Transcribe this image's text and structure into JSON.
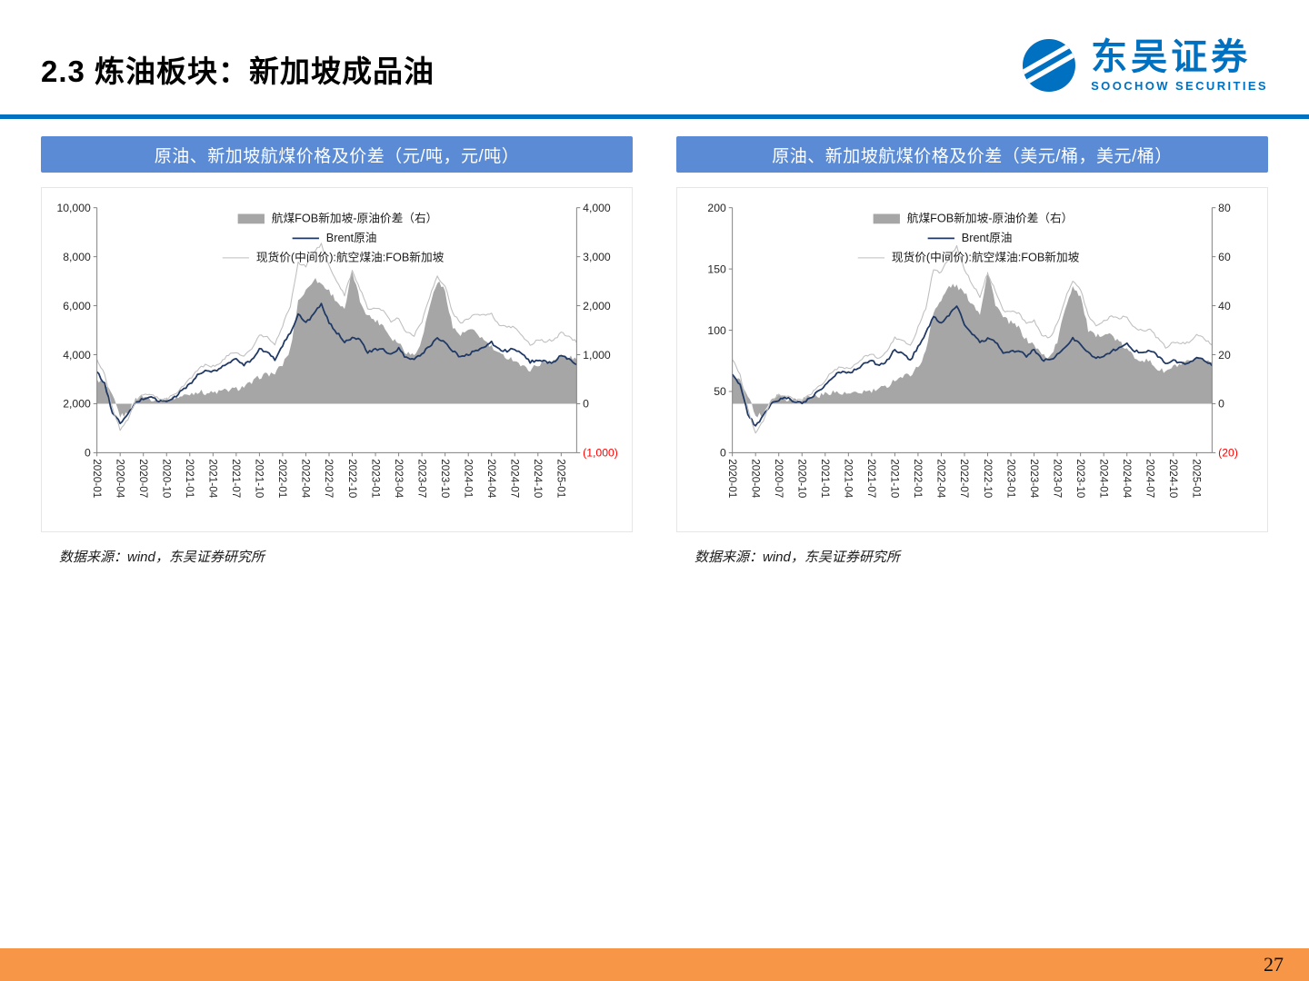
{
  "slide": {
    "title": "2.3 炼油板块：新加坡成品油",
    "page_number": "27"
  },
  "logo": {
    "name": "东吴证券",
    "subtitle": "SOOCHOW SECURITIES"
  },
  "colors": {
    "accent_blue": "#0070C0",
    "panel_header_blue": "#5B8BD5",
    "footer_orange": "#F79646",
    "negative_label_red": "#FF0000",
    "area_gray": "#A6A6A6",
    "brent_navy": "#1F3864",
    "spot_gray": "#BFBFBF",
    "axis_gray": "#808080"
  },
  "panels": [
    {
      "header": "原油、新加坡航煤价格及价差（元/吨，元/吨）",
      "source": "数据来源：wind，东吴证券研究所"
    },
    {
      "header": "原油、新加坡航煤价格及价差（美元/桶，美元/桶）",
      "source": "数据来源：wind，东吴证券研究所"
    }
  ],
  "chart_data": [
    {
      "type": "combo_line_area",
      "title": "原油、新加坡航煤价格及价差（元/吨，元/吨）",
      "grid": false,
      "legend_position": "top-center",
      "x": [
        "2020-01",
        "2020-02",
        "2020-03",
        "2020-04",
        "2020-05",
        "2020-06",
        "2020-07",
        "2020-08",
        "2020-09",
        "2020-10",
        "2020-11",
        "2020-12",
        "2021-01",
        "2021-02",
        "2021-03",
        "2021-04",
        "2021-05",
        "2021-06",
        "2021-07",
        "2021-08",
        "2021-09",
        "2021-10",
        "2021-11",
        "2021-12",
        "2022-01",
        "2022-02",
        "2022-03",
        "2022-04",
        "2022-05",
        "2022-06",
        "2022-07",
        "2022-08",
        "2022-09",
        "2022-10",
        "2022-11",
        "2022-12",
        "2023-01",
        "2023-02",
        "2023-03",
        "2023-04",
        "2023-05",
        "2023-06",
        "2023-07",
        "2023-08",
        "2023-09",
        "2023-10",
        "2023-11",
        "2023-12",
        "2024-01",
        "2024-02",
        "2024-03",
        "2024-04",
        "2024-05",
        "2024-06",
        "2024-07",
        "2024-08",
        "2024-09",
        "2024-10",
        "2024-11",
        "2024-12",
        "2025-01",
        "2025-02",
        "2025-03"
      ],
      "x_tick_labels": [
        "2020-01",
        "2020-04",
        "2020-07",
        "2020-10",
        "2021-01",
        "2021-04",
        "2021-07",
        "2021-10",
        "2022-01",
        "2022-04",
        "2022-07",
        "2022-10",
        "2023-01",
        "2023-04",
        "2023-07",
        "2023-10",
        "2024-01",
        "2024-04",
        "2024-07",
        "2024-10",
        "2025-01"
      ],
      "left_axis": {
        "min": 0,
        "max": 10000,
        "tick_labels": [
          "10,000",
          "8,000",
          "6,000",
          "4,000",
          "2,000",
          "0"
        ]
      },
      "right_axis": {
        "min": -1000,
        "max": 4000,
        "tick_labels": [
          "4,000",
          "3,000",
          "2,000",
          "1,000",
          "0",
          "(1,000)"
        ]
      },
      "series": [
        {
          "name": "航煤FOB新加坡-原油价差（右）",
          "type": "area",
          "axis": "right",
          "color": "#A6A6A6",
          "values": [
            500,
            400,
            150,
            -250,
            -200,
            100,
            150,
            100,
            80,
            80,
            120,
            150,
            200,
            250,
            220,
            220,
            250,
            280,
            300,
            350,
            420,
            550,
            600,
            620,
            800,
            1100,
            2100,
            2300,
            2550,
            2450,
            2300,
            2100,
            1900,
            2700,
            2100,
            1800,
            1700,
            1600,
            1350,
            1250,
            1050,
            1000,
            1300,
            2000,
            2500,
            2300,
            1550,
            1400,
            1500,
            1450,
            1300,
            1150,
            1000,
            950,
            900,
            750,
            700,
            800,
            850,
            900,
            950,
            950,
            900
          ]
        },
        {
          "name": "Brent原油",
          "type": "line",
          "axis": "left",
          "color": "#1F3864",
          "width": 1.8,
          "values": [
            3300,
            2800,
            1650,
            1200,
            1550,
            2050,
            2200,
            2300,
            2100,
            2100,
            2250,
            2550,
            2800,
            3150,
            3350,
            3300,
            3450,
            3700,
            3800,
            3600,
            3800,
            4250,
            4100,
            3800,
            4400,
            4900,
            5650,
            5300,
            5650,
            6050,
            5300,
            4900,
            4550,
            4700,
            4600,
            4100,
            4200,
            4200,
            4000,
            4250,
            3850,
            3800,
            4050,
            4350,
            4700,
            4500,
            4150,
            3900,
            4000,
            4200,
            4300,
            4500,
            4200,
            4150,
            4250,
            4000,
            3700,
            3800,
            3700,
            3700,
            3950,
            3800,
            3600
          ]
        },
        {
          "name": "现货价(中间价):航空煤油:FOB新加坡",
          "type": "line",
          "axis": "left",
          "color": "#BFBFBF",
          "width": 1.1,
          "values": [
            3800,
            3200,
            1800,
            950,
            1350,
            2150,
            2350,
            2400,
            2180,
            2180,
            2370,
            2700,
            3000,
            3400,
            3570,
            3520,
            3700,
            3980,
            4100,
            3950,
            4220,
            4800,
            4700,
            4420,
            5200,
            6000,
            7750,
            7600,
            8200,
            8500,
            7600,
            7000,
            6450,
            7400,
            6700,
            5900,
            5900,
            5800,
            5350,
            5500,
            4900,
            4800,
            5350,
            6350,
            7200,
            6800,
            5700,
            5300,
            5500,
            5650,
            5600,
            5650,
            5200,
            5100,
            5150,
            4750,
            4400,
            4600,
            4550,
            4600,
            4900,
            4750,
            4500
          ]
        }
      ]
    },
    {
      "type": "combo_line_area",
      "title": "原油、新加坡航煤价格及价差（美元/桶，美元/桶）",
      "grid": false,
      "legend_position": "top-center",
      "x": [
        "2020-01",
        "2020-02",
        "2020-03",
        "2020-04",
        "2020-05",
        "2020-06",
        "2020-07",
        "2020-08",
        "2020-09",
        "2020-10",
        "2020-11",
        "2020-12",
        "2021-01",
        "2021-02",
        "2021-03",
        "2021-04",
        "2021-05",
        "2021-06",
        "2021-07",
        "2021-08",
        "2021-09",
        "2021-10",
        "2021-11",
        "2021-12",
        "2022-01",
        "2022-02",
        "2022-03",
        "2022-04",
        "2022-05",
        "2022-06",
        "2022-07",
        "2022-08",
        "2022-09",
        "2022-10",
        "2022-11",
        "2022-12",
        "2023-01",
        "2023-02",
        "2023-03",
        "2023-04",
        "2023-05",
        "2023-06",
        "2023-07",
        "2023-08",
        "2023-09",
        "2023-10",
        "2023-11",
        "2023-12",
        "2024-01",
        "2024-02",
        "2024-03",
        "2024-04",
        "2024-05",
        "2024-06",
        "2024-07",
        "2024-08",
        "2024-09",
        "2024-10",
        "2024-11",
        "2024-12",
        "2025-01",
        "2025-02",
        "2025-03"
      ],
      "x_tick_labels": [
        "2020-01",
        "2020-04",
        "2020-07",
        "2020-10",
        "2021-01",
        "2021-04",
        "2021-07",
        "2021-10",
        "2022-01",
        "2022-04",
        "2022-07",
        "2022-10",
        "2023-01",
        "2023-04",
        "2023-07",
        "2023-10",
        "2024-01",
        "2024-04",
        "2024-07",
        "2024-10",
        "2025-01"
      ],
      "left_axis": {
        "min": 0,
        "max": 200,
        "tick_labels": [
          "200",
          "150",
          "100",
          "50",
          "0"
        ]
      },
      "right_axis": {
        "min": -20,
        "max": 80,
        "tick_labels": [
          "80",
          "60",
          "40",
          "20",
          "0",
          "(20)"
        ]
      },
      "series": [
        {
          "name": "航煤FOB新加坡-原油价差（右）",
          "type": "area",
          "axis": "right",
          "color": "#A6A6A6",
          "values": [
            12,
            9,
            4,
            -5,
            -4,
            2,
            4,
            2,
            2,
            2,
            3,
            3,
            4,
            5,
            4,
            4,
            4,
            5,
            5,
            6,
            7,
            10,
            11,
            12,
            15,
            21,
            38,
            42,
            48,
            48,
            45,
            41,
            37,
            54,
            41,
            35,
            33,
            31,
            26,
            24,
            20,
            19,
            25,
            39,
            48,
            44,
            30,
            27,
            29,
            28,
            25,
            22,
            19,
            18,
            17,
            14,
            13,
            15,
            16,
            17,
            18,
            18,
            17
          ]
        },
        {
          "name": "Brent原油",
          "type": "line",
          "axis": "left",
          "color": "#1F3864",
          "width": 1.8,
          "values": [
            64,
            55,
            32,
            21,
            30,
            40,
            43,
            45,
            41,
            41,
            44,
            50,
            55,
            62,
            66,
            65,
            68,
            73,
            75,
            71,
            75,
            84,
            81,
            75,
            87,
            97,
            112,
            105,
            112,
            120,
            105,
            97,
            90,
            93,
            91,
            81,
            83,
            83,
            79,
            84,
            76,
            75,
            80,
            86,
            93,
            89,
            82,
            77,
            79,
            83,
            85,
            89,
            83,
            82,
            84,
            79,
            73,
            75,
            73,
            73,
            78,
            75,
            71
          ]
        },
        {
          "name": "现货价(中间价):航空煤油:FOB新加坡",
          "type": "line",
          "axis": "left",
          "color": "#BFBFBF",
          "width": 1.1,
          "values": [
            76,
            64,
            36,
            16,
            26,
            42,
            47,
            47,
            43,
            43,
            47,
            53,
            59,
            67,
            70,
            69,
            72,
            78,
            80,
            77,
            82,
            94,
            92,
            87,
            102,
            118,
            150,
            147,
            160,
            168,
            150,
            138,
            127,
            147,
            132,
            116,
            116,
            114,
            105,
            108,
            96,
            94,
            105,
            125,
            141,
            133,
            112,
            104,
            108,
            111,
            110,
            111,
            102,
            100,
            101,
            93,
            86,
            90,
            89,
            90,
            96,
            93,
            88
          ]
        }
      ]
    }
  ]
}
